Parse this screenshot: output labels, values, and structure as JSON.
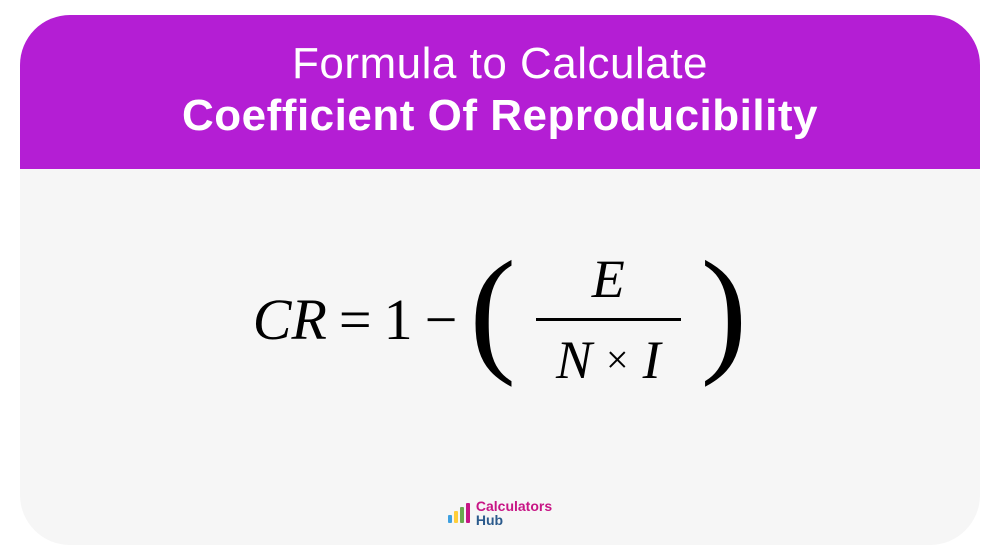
{
  "card": {
    "background_color": "#f6f6f6",
    "border_radius": 50
  },
  "header": {
    "background_color": "#b41ed4",
    "title_line1": "Formula to Calculate",
    "title_line2": "Coefficient Of Reproducibility",
    "text_color": "#ffffff",
    "line1_fontsize": 44,
    "line1_weight": 400,
    "line2_fontsize": 44,
    "line2_weight": 700
  },
  "formula": {
    "lhs_var": "CR",
    "equals": "=",
    "constant": "1",
    "minus": "−",
    "numerator": "E",
    "denom_left": "N",
    "times": "×",
    "denom_right": "I",
    "font_color": "#000000",
    "fontsize": 58,
    "fraction_fontsize": 54,
    "paren_fontsize": 140,
    "fraction_bar_width": 3
  },
  "footer": {
    "brand_top": "Calculators",
    "brand_bottom": "Hub",
    "brand_top_color": "#c71585",
    "brand_bottom_color": "#2b5a8c",
    "bars": [
      {
        "height": 8,
        "color": "#3ea0e0"
      },
      {
        "height": 12,
        "color": "#ffce3a"
      },
      {
        "height": 16,
        "color": "#6aa84f"
      },
      {
        "height": 20,
        "color": "#c71585"
      }
    ]
  }
}
